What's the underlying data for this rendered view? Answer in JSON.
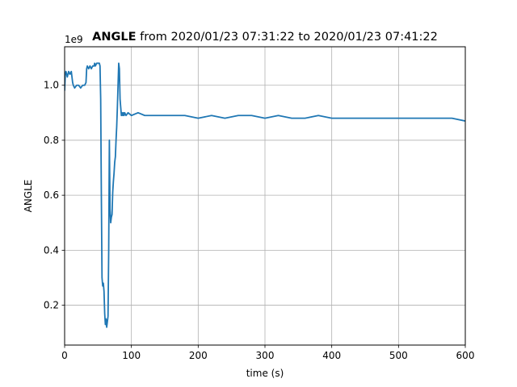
{
  "chart_data": {
    "type": "line",
    "title_bold": "ANGLE",
    "title_rest": " from 2020/01/23 07:31:22 to 2020/01/23 07:41:22",
    "xlabel": "time (s)",
    "ylabel": "ANGLE",
    "y_offset_text": "1e9",
    "xlim": [
      0,
      600
    ],
    "ylim": [
      0.055,
      1.14
    ],
    "x_ticks": [
      0,
      100,
      200,
      300,
      400,
      500,
      600
    ],
    "x_tick_labels": [
      "0",
      "100",
      "200",
      "300",
      "400",
      "500",
      "600"
    ],
    "y_ticks": [
      0.2,
      0.4,
      0.6,
      0.8,
      1.0
    ],
    "y_tick_labels": [
      "0.2",
      "0.4",
      "0.6",
      "0.8",
      "1.0"
    ],
    "grid": true,
    "line_color": "#1f77b4",
    "series": [
      {
        "x": [
          0,
          1,
          2,
          4,
          6,
          8,
          10,
          12,
          13,
          15,
          18,
          21,
          24,
          27,
          30,
          32,
          33,
          34,
          36,
          38,
          40,
          42,
          44,
          45,
          46,
          48,
          50,
          52,
          53,
          54,
          55,
          56,
          57,
          58,
          59,
          60,
          61,
          62,
          63,
          64,
          65,
          66,
          67,
          68,
          69,
          70,
          71,
          72,
          73,
          74,
          75,
          76,
          77,
          78,
          79,
          80,
          81,
          82,
          83,
          84,
          85,
          86,
          87,
          88,
          89,
          90,
          92,
          95,
          100,
          110,
          120,
          140,
          160,
          180,
          200,
          220,
          240,
          260,
          280,
          300,
          320,
          340,
          360,
          380,
          400,
          420,
          440,
          460,
          480,
          500,
          520,
          540,
          560,
          580,
          600
        ],
        "y": [
          0.98,
          1.04,
          1.05,
          1.03,
          1.05,
          1.04,
          1.05,
          1.01,
          1.0,
          0.99,
          1.0,
          1.0,
          0.99,
          1.0,
          1.0,
          1.01,
          1.06,
          1.07,
          1.06,
          1.07,
          1.06,
          1.07,
          1.07,
          1.08,
          1.07,
          1.08,
          1.08,
          1.08,
          1.07,
          0.95,
          0.6,
          0.3,
          0.27,
          0.28,
          0.25,
          0.17,
          0.13,
          0.15,
          0.12,
          0.14,
          0.16,
          0.4,
          0.8,
          0.55,
          0.5,
          0.52,
          0.53,
          0.61,
          0.65,
          0.68,
          0.72,
          0.74,
          0.8,
          0.85,
          0.92,
          1.0,
          1.08,
          1.06,
          0.95,
          0.92,
          0.89,
          0.9,
          0.89,
          0.9,
          0.89,
          0.9,
          0.89,
          0.9,
          0.89,
          0.9,
          0.89,
          0.89,
          0.89,
          0.89,
          0.88,
          0.89,
          0.88,
          0.89,
          0.89,
          0.88,
          0.89,
          0.88,
          0.88,
          0.89,
          0.88,
          0.88,
          0.88,
          0.88,
          0.88,
          0.88,
          0.88,
          0.88,
          0.88,
          0.88,
          0.87
        ]
      }
    ]
  }
}
